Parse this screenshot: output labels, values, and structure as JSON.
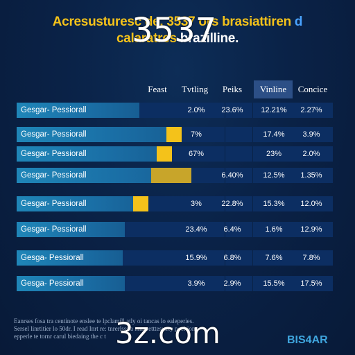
{
  "title": {
    "line1_part1": "Acresusturesc de. 3537 ors brasiattiren",
    "line1_part2": " d",
    "line2": "calaratres "
  },
  "title_line2_tail": "brazilline.",
  "overlay_number": "3537",
  "watermark": "3z.com",
  "brand": "BIS4AR",
  "footer_note": [
    "Eanrses fosa tra centinote enslee te lpclamill atly oi tancas lo ealeperies.",
    "Sersel linrtitier lo 50dr. I read Inrt re: tnrerlsss a nnaeretttes:crty poeltion,",
    "epperle te tornr carul biedaing the c t"
  ],
  "colors": {
    "accent_yellow": "#f4c21a",
    "dark_yellow": "#c8a52a",
    "bar_blue": "#1f86b8",
    "row_bg": "#0c2e62",
    "active_header": "#2c4f86"
  },
  "chart_data": {
    "type": "table",
    "columns": [
      "Feast",
      "Tvtling",
      "Peiks",
      "Vinline",
      "Concice"
    ],
    "active_column": "Vinline",
    "rows": [
      {
        "label": "Gesgar- Pessiorall",
        "fill": 0.52,
        "values": [
          "2.0%",
          "23.6%",
          "12.21%",
          "2.27%"
        ]
      },
      {
        "label": "Gesgar- Pessiorall",
        "fill": 0.7,
        "highlight": "bright",
        "values": [
          "7%",
          "",
          "17.4%",
          "3.9%"
        ]
      },
      {
        "label": "Gesgar- Pessiorall",
        "fill": 0.66,
        "highlight": "bright",
        "values": [
          "67%",
          "",
          "23%",
          "2.0%"
        ]
      },
      {
        "label": "Gesgar- Pessiorall",
        "fill": 0.74,
        "highlight": "dark",
        "values": [
          "",
          "6.40%",
          "12.5%",
          "1.35%"
        ]
      },
      {
        "label": "Gesgar- Pessiorall",
        "fill": 0.56,
        "highlight": "bright",
        "values": [
          "3%",
          "22.8%",
          "15.3%",
          "12.0%"
        ]
      },
      {
        "label": "Gesgar- Pessiorall",
        "fill": 0.46,
        "values": [
          "23.4%",
          "6.4%",
          "1.6%",
          "12.9%"
        ]
      },
      {
        "label": "Gesga- Pessiorall",
        "fill": 0.45,
        "values": [
          "15.9%",
          "6.8%",
          "7.6%",
          "7.8%"
        ]
      },
      {
        "label": "Gesga- Pessiorall",
        "fill": 0.46,
        "values": [
          "3.9%",
          "2.9%",
          "15.5%",
          "17.5%"
        ]
      }
    ]
  }
}
